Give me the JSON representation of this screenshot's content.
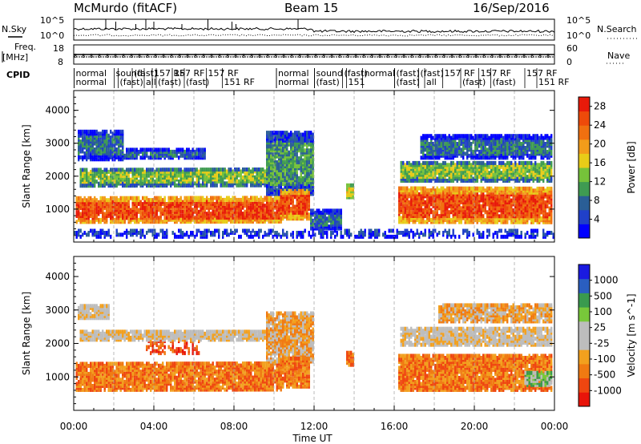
{
  "header": {
    "station": "McMurdo (fitACF)",
    "beam": "Beam 15",
    "date": "16/Sep/2016"
  },
  "status_panels": {
    "nsky_label": "N.Sky",
    "nsearch_label": "N.Search",
    "nsky_ticks": [
      "10^5",
      "10^0"
    ],
    "nsearch_ticks": [
      "10^5",
      "10^0"
    ],
    "freq_label_line1": "Freq.",
    "freq_label_line2": "[MHz]",
    "freq_ticks": [
      "18",
      "8"
    ],
    "nave_label": "Nave",
    "nave_ticks": [
      "60",
      "0"
    ],
    "cpid_label": "CPID"
  },
  "cpid_entries": [
    {
      "hour": 0.1,
      "row": 0,
      "text": "normal"
    },
    {
      "hour": 0.1,
      "row": 1,
      "text": "normal"
    },
    {
      "hour": 2.1,
      "row": 0,
      "text": "sound"
    },
    {
      "hour": 2.3,
      "row": 1,
      "text": "(fast)"
    },
    {
      "hour": 3.0,
      "row": 0,
      "text": "(fast)"
    },
    {
      "hour": 3.6,
      "row": 1,
      "text": "all"
    },
    {
      "hour": 4.0,
      "row": 0,
      "text": "157 RF"
    },
    {
      "hour": 4.2,
      "row": 1,
      "text": "(fast)"
    },
    {
      "hour": 5.0,
      "row": 0,
      "text": "157 RF"
    },
    {
      "hour": 5.6,
      "row": 1,
      "text": "(fast)"
    },
    {
      "hour": 6.7,
      "row": 0,
      "text": "157 RF"
    },
    {
      "hour": 7.5,
      "row": 1,
      "text": "151 RF"
    },
    {
      "hour": 10.2,
      "row": 0,
      "text": "normal"
    },
    {
      "hour": 10.2,
      "row": 1,
      "text": "normal"
    },
    {
      "hour": 12.1,
      "row": 0,
      "text": "sound"
    },
    {
      "hour": 12.1,
      "row": 1,
      "text": "(fast)"
    },
    {
      "hour": 13.5,
      "row": 0,
      "text": "(fast)"
    },
    {
      "hour": 13.7,
      "row": 1,
      "text": "151"
    },
    {
      "hour": 14.5,
      "row": 0,
      "text": "normal"
    },
    {
      "hour": 16.1,
      "row": 0,
      "text": "(fast)"
    },
    {
      "hour": 16.1,
      "row": 1,
      "text": "(fast)"
    },
    {
      "hour": 17.3,
      "row": 0,
      "text": "(fast)"
    },
    {
      "hour": 17.6,
      "row": 1,
      "text": "all"
    },
    {
      "hour": 18.5,
      "row": 0,
      "text": "157 RF"
    },
    {
      "hour": 19.4,
      "row": 1,
      "text": "(fast)"
    },
    {
      "hour": 20.3,
      "row": 0,
      "text": "157 RF"
    },
    {
      "hour": 20.9,
      "row": 1,
      "text": "(fast)"
    },
    {
      "hour": 22.6,
      "row": 0,
      "text": "157 RF"
    },
    {
      "hour": 23.2,
      "row": 1,
      "text": "151 RF"
    }
  ],
  "chart_data": [
    {
      "type": "heatmap",
      "quantity": "Power",
      "ylabel": "Slant Range [km]",
      "xlabel": "Time UT",
      "xlim": [
        0,
        24
      ],
      "ylim": [
        0,
        4600
      ],
      "x_ticks": [
        "00:00",
        "04:00",
        "08:00",
        "12:00",
        "16:00",
        "20:00",
        "00:00"
      ],
      "y_ticks": [
        1000,
        2000,
        3000,
        4000
      ],
      "colorbar": {
        "label": "Power [dB]",
        "ticks": [
          "28",
          "24",
          "20",
          "16",
          "12",
          "8",
          "4"
        ],
        "colors": [
          "#0000ff",
          "#2040c8",
          "#2a5e96",
          "#3f9b52",
          "#76c23a",
          "#e8cc18",
          "#f39c1a",
          "#f07010",
          "#ee4a0a",
          "#e81a0a"
        ]
      },
      "regions": [
        {
          "t0": 0.1,
          "t1": 10.3,
          "r0": 550,
          "r1": 1300,
          "level": 8,
          "slope": 0.012
        },
        {
          "t0": 0.3,
          "t1": 10.3,
          "r0": 1650,
          "r1": 2150,
          "level": 4,
          "slope": 0.014
        },
        {
          "t0": 0.2,
          "t1": 2.5,
          "r0": 2450,
          "r1": 3300,
          "level": 2
        },
        {
          "t0": 2.5,
          "t1": 6.5,
          "r0": 2500,
          "r1": 2750,
          "level": 2
        },
        {
          "t0": 9.6,
          "t1": 11.9,
          "r0": 1400,
          "r1": 3300,
          "level": 3
        },
        {
          "t0": 10.3,
          "t1": 11.7,
          "r0": 650,
          "r1": 1550,
          "level": 8
        },
        {
          "t0": 13.6,
          "t1": 13.9,
          "r0": 1300,
          "r1": 1700,
          "level": 5
        },
        {
          "t0": 11.8,
          "t1": 13.3,
          "r0": 350,
          "r1": 900,
          "level": 2
        },
        {
          "t0": 16.2,
          "t1": 23.9,
          "r0": 550,
          "r1": 1600,
          "level": 8,
          "slope": -0.01
        },
        {
          "t0": 16.3,
          "t1": 23.9,
          "r0": 1800,
          "r1": 2400,
          "level": 4
        },
        {
          "t0": 17.3,
          "t1": 23.9,
          "r0": 2500,
          "r1": 3200,
          "level": 2
        },
        {
          "t0": 0.0,
          "t1": 24.0,
          "r0": 100,
          "r1": 320,
          "level": 1
        }
      ]
    },
    {
      "type": "heatmap",
      "quantity": "Velocity",
      "ylabel": "Slant Range [km]",
      "xlabel": "Time UT",
      "xlim": [
        0,
        24
      ],
      "ylim": [
        0,
        4600
      ],
      "x_ticks": [
        "00:00",
        "04:00",
        "08:00",
        "12:00",
        "16:00",
        "20:00",
        "00:00"
      ],
      "y_ticks": [
        1000,
        2000,
        3000,
        4000
      ],
      "colorbar": {
        "label": "Velocity [m s^-1]",
        "ticks": [
          "1000",
          "500",
          "100",
          "25",
          "-25",
          "-100",
          "-500",
          "-1000"
        ],
        "colors": [
          "#e8140a",
          "#ef4610",
          "#f07a12",
          "#f2a01e",
          "#bdbdbd",
          "#bdbdbd",
          "#78c83a",
          "#3a9a4e",
          "#2a5ec0",
          "#1a1ae0"
        ]
      },
      "regions": [
        {
          "t0": 0.1,
          "t1": 10.3,
          "r0": 550,
          "r1": 1350,
          "level": 2,
          "slope": 0.012
        },
        {
          "t0": 3.6,
          "t1": 6.2,
          "r0": 1650,
          "r1": 2050,
          "level": 1
        },
        {
          "t0": 0.3,
          "t1": 10.5,
          "r0": 2050,
          "r1": 2350,
          "level": 4
        },
        {
          "t0": 0.2,
          "t1": 1.8,
          "r0": 2700,
          "r1": 3100,
          "level": 4
        },
        {
          "t0": 9.6,
          "t1": 11.9,
          "r0": 1400,
          "r1": 2900,
          "level": 3
        },
        {
          "t0": 10.3,
          "t1": 11.7,
          "r0": 650,
          "r1": 1550,
          "level": 2
        },
        {
          "t0": 13.6,
          "t1": 13.9,
          "r0": 1300,
          "r1": 1700,
          "level": 2
        },
        {
          "t0": 16.2,
          "t1": 23.9,
          "r0": 550,
          "r1": 1600,
          "level": 2
        },
        {
          "t0": 16.3,
          "t1": 23.9,
          "r0": 1900,
          "r1": 2400,
          "level": 4
        },
        {
          "t0": 22.5,
          "t1": 23.9,
          "r0": 700,
          "r1": 1100,
          "level": 6
        },
        {
          "t0": 18.2,
          "t1": 23.9,
          "r0": 2600,
          "r1": 3100,
          "level": 3
        }
      ]
    }
  ]
}
